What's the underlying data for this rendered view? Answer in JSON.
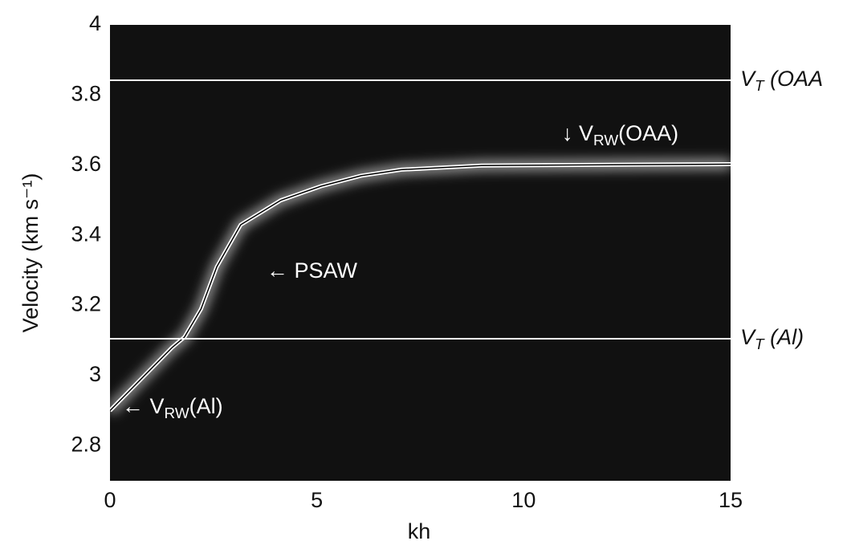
{
  "chart_data": {
    "type": "line",
    "x_label": "kh",
    "y_label": "Velocity (km s⁻¹)",
    "x": [
      0,
      0.5,
      1.0,
      1.5,
      1.8,
      2.2,
      2.58,
      3.16,
      4.13,
      5.1,
      6.07,
      7.04,
      8.98,
      15
    ],
    "values": [
      2.9,
      2.96,
      3.02,
      3.08,
      3.11,
      3.19,
      3.31,
      3.43,
      3.5,
      3.54,
      3.57,
      3.587,
      3.599,
      3.603
    ],
    "color": "#000000",
    "glow_color": "#ffffff",
    "background": "#111111",
    "xlim": [
      0,
      15
    ],
    "xticks": [
      0,
      5,
      10,
      15
    ],
    "ylim": [
      2.7,
      4
    ],
    "yticks": [
      2.8,
      3,
      3.2,
      3.4,
      3.6,
      3.8,
      4
    ],
    "reference_lines": [
      {
        "value": 3.842,
        "text": "V",
        "sub": "T",
        "suffix": " (OAA",
        "color": "#ffffff"
      },
      {
        "value": 3.105,
        "text": "V",
        "sub": "T",
        "suffix": " (Al)",
        "color": "#ffffff"
      }
    ],
    "annotations": [
      {
        "text": "↓ V",
        "sub": "RW",
        "suffix": "(OAA)"
      },
      {
        "text": "← PSAW"
      },
      {
        "text": "← V",
        "sub": "RW",
        "suffix": "(Al)"
      }
    ]
  }
}
